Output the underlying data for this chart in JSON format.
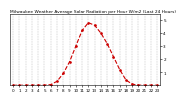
{
  "title": "Milwaukee Weather Average Solar Radiation per Hour W/m2 (Last 24 Hours)",
  "x_values": [
    0,
    1,
    2,
    3,
    4,
    5,
    6,
    7,
    8,
    9,
    10,
    11,
    12,
    13,
    14,
    15,
    16,
    17,
    18,
    19,
    20,
    21,
    22,
    23
  ],
  "y_values": [
    0,
    0,
    0,
    0,
    0,
    0,
    0.05,
    0.3,
    0.9,
    1.8,
    3.0,
    4.2,
    4.8,
    4.6,
    4.0,
    3.2,
    2.2,
    1.2,
    0.4,
    0.08,
    0.01,
    0,
    0,
    0
  ],
  "line_color": "#cc0000",
  "background_color": "#ffffff",
  "grid_color": "#999999",
  "ylim": [
    0,
    5.5
  ],
  "xlim": [
    -0.5,
    23.5
  ],
  "title_fontsize": 3.2,
  "tick_fontsize": 3.0,
  "line_width": 0.8,
  "marker": ".",
  "marker_size": 1.8,
  "yticks": [
    1,
    2,
    3,
    4,
    5
  ],
  "ytick_labels": [
    "1",
    "2",
    "3",
    "4",
    "5"
  ]
}
